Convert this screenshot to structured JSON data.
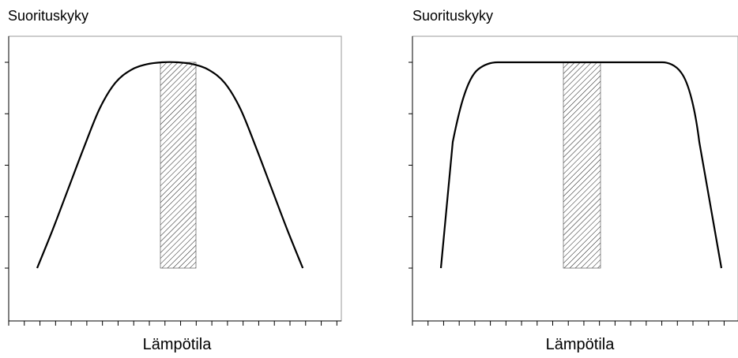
{
  "chart_data": [
    {
      "type": "line",
      "title": "",
      "ylabel": "Suorituskyky",
      "xlabel": "Lämpötila",
      "x_ticks": 22,
      "y_ticks": 6,
      "grid": false,
      "shaded_band": {
        "x_range": [
          9,
          11
        ],
        "y_range": [
          0,
          4
        ],
        "pattern": "hatched"
      },
      "series": [
        {
          "x": [
            1,
            2,
            3,
            4,
            5,
            6,
            7,
            8,
            9,
            10,
            11,
            12,
            13,
            14,
            15,
            16,
            17,
            18,
            19
          ],
          "y": [
            0,
            0.75,
            1.55,
            2.35,
            3.1,
            3.6,
            3.85,
            3.96,
            4.0,
            4.0,
            3.96,
            3.85,
            3.6,
            3.1,
            2.35,
            1.55,
            0.75,
            0,
            0
          ],
          "note_last_point_duplicate": false
        }
      ]
    },
    {
      "type": "line",
      "title": "",
      "ylabel": "Suorituskyky",
      "xlabel": "Lämpötila",
      "x_ticks": 22,
      "y_ticks": 6,
      "grid": false,
      "shaded_band": {
        "x_range": [
          9,
          11
        ],
        "y_range": [
          0,
          4
        ],
        "pattern": "hatched"
      },
      "series": [
        {
          "x": [
            1,
            2,
            3,
            4,
            5,
            10,
            15,
            16,
            17,
            18,
            19
          ],
          "y": [
            0,
            2.2,
            3.6,
            3.95,
            4.0,
            4.0,
            4.0,
            3.95,
            3.6,
            2.2,
            0
          ]
        }
      ]
    }
  ]
}
